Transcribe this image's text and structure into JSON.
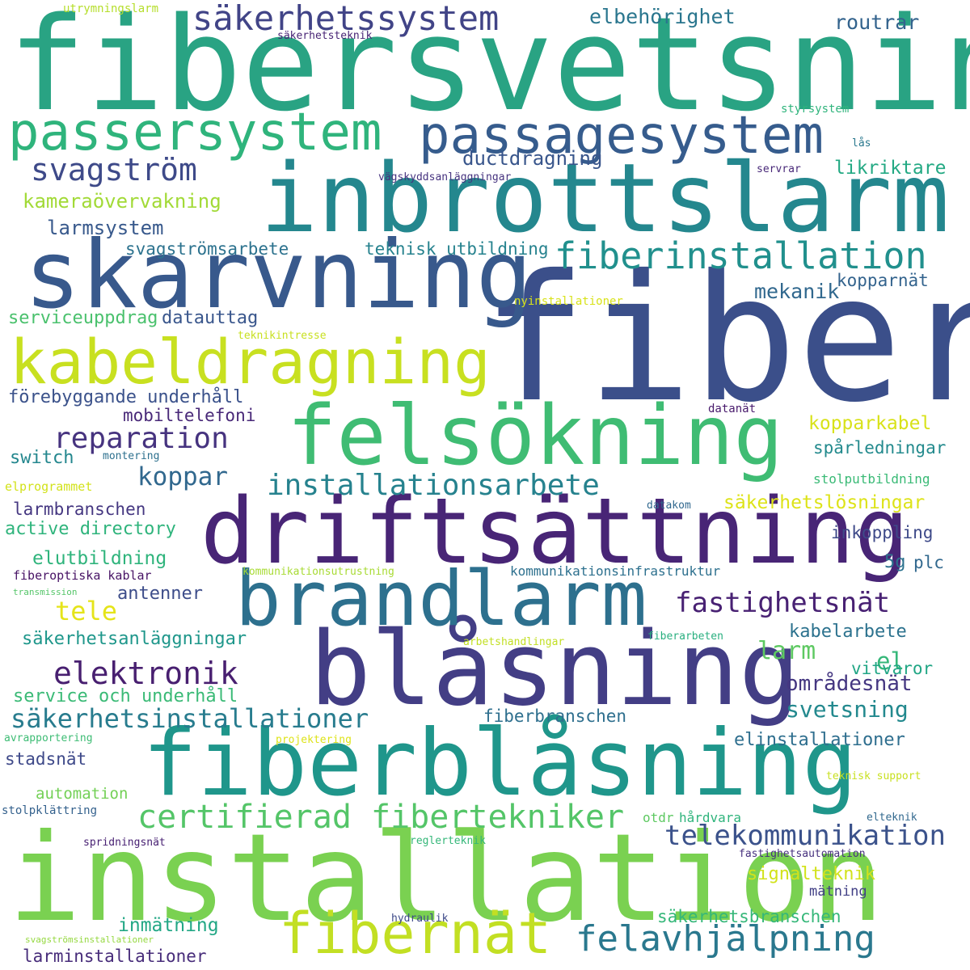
{
  "words": [
    {
      "text": "fiber",
      "color": "#3b4f8a"
    },
    {
      "text": "fibersvetsning",
      "color": "#29a383"
    },
    {
      "text": "inbrottslarm",
      "color": "#24878e"
    },
    {
      "text": "skarvning",
      "color": "#38598c"
    },
    {
      "text": "installation",
      "color": "#7ad151"
    },
    {
      "text": "driftsättning",
      "color": "#482576"
    },
    {
      "text": "blåsning",
      "color": "#433e85"
    },
    {
      "text": "fiberblåsning",
      "color": "#1f968b"
    },
    {
      "text": "brandlarm",
      "color": "#2d708e"
    },
    {
      "text": "felsökning",
      "color": "#3fbc73"
    },
    {
      "text": "kabeldragning",
      "color": "#c8e020"
    },
    {
      "text": "passersystem",
      "color": "#2fb47c"
    },
    {
      "text": "passagesystem",
      "color": "#365c8d"
    },
    {
      "text": "fibernät",
      "color": "#c2df23"
    },
    {
      "text": "säkerhetssystem",
      "color": "#414487"
    },
    {
      "text": "fiberinstallation",
      "color": "#21908d"
    },
    {
      "text": "felavhjälpning",
      "color": "#2a788e"
    },
    {
      "text": "certifierad fibertekniker",
      "color": "#54c568"
    },
    {
      "text": "installationsarbete",
      "color": "#26828e"
    },
    {
      "text": "svagström",
      "color": "#3e4a89"
    },
    {
      "text": "reparation",
      "color": "#46337f"
    },
    {
      "text": "elektronik",
      "color": "#481f70"
    },
    {
      "text": "telekommunikation",
      "color": "#3b528b"
    },
    {
      "text": "säkerhetsinstallationer",
      "color": "#287c8e"
    },
    {
      "text": "fastighetsnät",
      "color": "#482173"
    },
    {
      "text": "koppar",
      "color": "#31688e"
    },
    {
      "text": "tele",
      "color": "#e5e419"
    },
    {
      "text": "larm",
      "color": "#5ec962"
    },
    {
      "text": "el",
      "color": "#35b779"
    },
    {
      "text": "elbehörighet",
      "color": "#2a768e"
    },
    {
      "text": "routrar",
      "color": "#33638d"
    },
    {
      "text": "ductdragning",
      "color": "#39568c"
    },
    {
      "text": "likriktare",
      "color": "#23a983"
    },
    {
      "text": "kameraövervakning",
      "color": "#a2da37"
    },
    {
      "text": "larmsystem",
      "color": "#38598c"
    },
    {
      "text": "svagströmsarbete",
      "color": "#2c728e"
    },
    {
      "text": "teknisk utbildning",
      "color": "#26828e"
    },
    {
      "text": "kopparnät",
      "color": "#33638d"
    },
    {
      "text": "mekanik",
      "color": "#31688e"
    },
    {
      "text": "serviceuppdrag",
      "color": "#4ac16d"
    },
    {
      "text": "datauttag",
      "color": "#39568c"
    },
    {
      "text": "förebyggande underhåll",
      "color": "#3b528b"
    },
    {
      "text": "mobiltelefoni",
      "color": "#482878"
    },
    {
      "text": "kopparkabel",
      "color": "#d8e219"
    },
    {
      "text": "spårledningar",
      "color": "#238a8d"
    },
    {
      "text": "switch",
      "color": "#24878e"
    },
    {
      "text": "larmbranschen",
      "color": "#453781"
    },
    {
      "text": "säkerhetslösningar",
      "color": "#dde318"
    },
    {
      "text": "active directory",
      "color": "#2fb47c"
    },
    {
      "text": "inkoppling",
      "color": "#3e4a89"
    },
    {
      "text": "elutbildning",
      "color": "#2fb47c"
    },
    {
      "text": "5g",
      "color": "#2c728e"
    },
    {
      "text": "plc",
      "color": "#31688e"
    },
    {
      "text": "antenner",
      "color": "#3d4d8a"
    },
    {
      "text": "kabelarbete",
      "color": "#2c728e"
    },
    {
      "text": "säkerhetsanläggningar",
      "color": "#1f978b"
    },
    {
      "text": "vitvaror",
      "color": "#21a685"
    },
    {
      "text": "områdesnät",
      "color": "#453781"
    },
    {
      "text": "service och underhåll",
      "color": "#3aba76"
    },
    {
      "text": "svetsning",
      "color": "#23898e"
    },
    {
      "text": "fiberbranschen",
      "color": "#2e6f8e"
    },
    {
      "text": "elinstallationer",
      "color": "#2e6e8e"
    },
    {
      "text": "stadsnät",
      "color": "#3e4989"
    },
    {
      "text": "automation",
      "color": "#73d056"
    },
    {
      "text": "signalteknik",
      "color": "#d2e21b"
    },
    {
      "text": "säkerhetsbranschen",
      "color": "#35b779"
    },
    {
      "text": "inmätning",
      "color": "#22a785"
    },
    {
      "text": "larminstallationer",
      "color": "#472c7a"
    },
    {
      "text": "mätning",
      "color": "#424086"
    },
    {
      "text": "utrymningslarm",
      "color": "#b5de2b"
    },
    {
      "text": "säkerhetsteknik",
      "color": "#482475"
    },
    {
      "text": "styrsystem",
      "color": "#2fb47c"
    },
    {
      "text": "lås",
      "color": "#2a788e"
    },
    {
      "text": "servrar",
      "color": "#482878"
    },
    {
      "text": "vägskyddsanläggningar",
      "color": "#46337f"
    },
    {
      "text": "nyinstallationer",
      "color": "#d8e219"
    },
    {
      "text": "teknikintresse",
      "color": "#c8e020"
    },
    {
      "text": "datanät",
      "color": "#481a6c"
    },
    {
      "text": "montering",
      "color": "#2d708e"
    },
    {
      "text": "elprogrammet",
      "color": "#d2e21b"
    },
    {
      "text": "stolputbildning",
      "color": "#3aba76"
    },
    {
      "text": "datakom",
      "color": "#31688e"
    },
    {
      "text": "kommunikationsutrustning",
      "color": "#a8db34"
    },
    {
      "text": "kommunikationsinfrastruktur",
      "color": "#2d708e"
    },
    {
      "text": "fiberoptiska kablar",
      "color": "#471365"
    },
    {
      "text": "transmission",
      "color": "#54c568"
    },
    {
      "text": "arbetshandlingar",
      "color": "#c2df23"
    },
    {
      "text": "fiberarbeten",
      "color": "#29af7f"
    },
    {
      "text": "avrapportering",
      "color": "#3dbc74"
    },
    {
      "text": "projektering",
      "color": "#dde318"
    },
    {
      "text": "teknisk support",
      "color": "#c8e020"
    },
    {
      "text": "otdr",
      "color": "#5ec962"
    },
    {
      "text": "hårdvara",
      "color": "#2fb47c"
    },
    {
      "text": "stolpklättring",
      "color": "#34618d"
    },
    {
      "text": "elteknik",
      "color": "#31688e"
    },
    {
      "text": "spridningsnät",
      "color": "#482173"
    },
    {
      "text": "reglerteknik",
      "color": "#35b779"
    },
    {
      "text": "fastighetsautomation",
      "color": "#46307e"
    },
    {
      "text": "hydraulik",
      "color": "#3e4a89"
    },
    {
      "text": "svagströmsinstallationer",
      "color": "#95d840"
    }
  ]
}
